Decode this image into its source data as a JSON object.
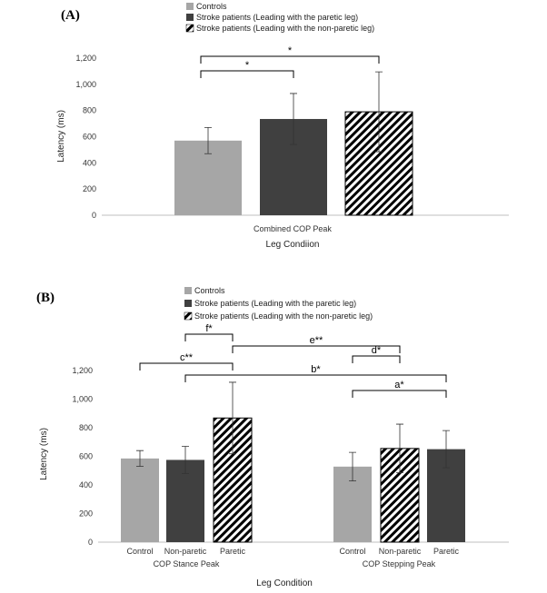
{
  "colors": {
    "control": "#a6a6a6",
    "paretic_leading": "#404040",
    "nonparetic_leading": "hatch-black-white"
  },
  "chart_data": [
    {
      "panel_label": "(A)",
      "type": "bar",
      "ylabel": "Latency (ms)",
      "xlabel": "Leg Condiion",
      "ylim": [
        0,
        1200
      ],
      "yticks": [
        "0",
        "200",
        "400",
        "600",
        "800",
        "1,000",
        "1,200"
      ],
      "categories": [
        "Combined COP Peak"
      ],
      "legend": [
        "Controls",
        "Stroke patients (Leading with the paretic leg)",
        "Stroke patients (Leading with the non-paretic leg)"
      ],
      "legend_position": "top",
      "bars": [
        {
          "series": 0,
          "value": 570,
          "err": 100
        },
        {
          "series": 1,
          "value": 735,
          "err": 195
        },
        {
          "series": 2,
          "value": 790,
          "err": 305
        }
      ],
      "significance": [
        {
          "label": "*",
          "from": 0,
          "to": 1
        },
        {
          "label": "*",
          "from": 0,
          "to": 2
        }
      ]
    },
    {
      "panel_label": "(B)",
      "type": "bar",
      "ylabel": "Latency (ms)",
      "xlabel": "Leg Condition",
      "ylim": [
        0,
        1200
      ],
      "yticks": [
        "0",
        "200",
        "400",
        "600",
        "800",
        "1,000",
        "1,200"
      ],
      "groups": [
        "COP Stance Peak",
        "COP Stepping Peak"
      ],
      "legend": [
        "Controls",
        "Stroke patients (Leading with the paretic leg)",
        "Stroke patients (Leading with the non-paretic leg)"
      ],
      "legend_position": "top",
      "bars": [
        {
          "label": "Control",
          "series": 0,
          "value": 585,
          "err": 55
        },
        {
          "label": "Non-paretic",
          "series": 1,
          "value": 575,
          "err": 95
        },
        {
          "label": "Paretic",
          "series": 2,
          "value": 868,
          "err": 250
        },
        {
          "label": "Control",
          "series": 0,
          "value": 528,
          "err": 100
        },
        {
          "label": "Non-paretic",
          "series": 2,
          "value": 655,
          "err": 170
        },
        {
          "label": "Paretic",
          "series": 1,
          "value": 650,
          "err": 130
        }
      ],
      "significance": [
        {
          "label": "f*",
          "from": 1,
          "to": 2,
          "level": 0
        },
        {
          "label": "c**",
          "from": 0,
          "to": 2,
          "level": 1
        },
        {
          "label": "e**",
          "from": 2,
          "to": 4,
          "level": 0
        },
        {
          "label": "d*",
          "from": 3,
          "to": 4,
          "level": 1
        },
        {
          "label": "b*",
          "from": 1,
          "to": 5,
          "level": 2
        },
        {
          "label": "a*",
          "from": 3,
          "to": 5,
          "level": 3
        }
      ]
    }
  ]
}
